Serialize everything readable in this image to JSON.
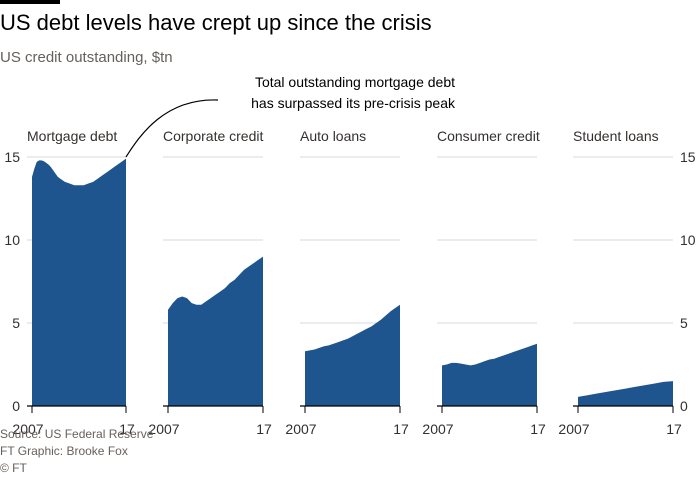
{
  "header": {
    "title": "US debt levels have crept up since the crisis",
    "subtitle": "US credit outstanding, $tn"
  },
  "annotation": {
    "line1": "Total outstanding mortgage debt",
    "line2": "has surpassed its pre-crisis peak"
  },
  "footer": {
    "source": "Source: US Federal Reserve",
    "graphic": "FT Graphic: Brooke Fox",
    "copyright": "© FT"
  },
  "colors": {
    "area": "#1f558e",
    "grid": "#d9d9d9",
    "axis": "#000000",
    "text": "#33302e"
  },
  "chart_data": {
    "type": "area",
    "x_tick_labels": [
      "2007",
      "17"
    ],
    "y_ticks": [
      0,
      5,
      10,
      15
    ],
    "ylim": [
      0,
      15.5
    ],
    "y_axis_sides": "left and right",
    "series": [
      {
        "name": "Mortgage debt",
        "x": [
          2007,
          2007.25,
          2007.5,
          2007.75,
          2008,
          2008.25,
          2008.5,
          2008.75,
          2009,
          2009.25,
          2009.5,
          2009.75,
          2010,
          2010.5,
          2011,
          2011.5,
          2012,
          2012.5,
          2013,
          2013.5,
          2014,
          2014.5,
          2015,
          2015.5,
          2016,
          2016.5,
          2017
        ],
        "values": [
          13.8,
          14.3,
          14.7,
          14.8,
          14.8,
          14.75,
          14.65,
          14.55,
          14.4,
          14.2,
          14.0,
          13.8,
          13.7,
          13.5,
          13.4,
          13.3,
          13.3,
          13.3,
          13.4,
          13.5,
          13.7,
          13.9,
          14.1,
          14.3,
          14.5,
          14.7,
          14.9
        ]
      },
      {
        "name": "Corporate credit",
        "x": [
          2007,
          2007.5,
          2008,
          2008.5,
          2009,
          2009.5,
          2010,
          2010.5,
          2011,
          2011.5,
          2012,
          2012.5,
          2013,
          2013.5,
          2014,
          2014.5,
          2015,
          2015.5,
          2016,
          2016.5,
          2017
        ],
        "values": [
          5.8,
          6.2,
          6.5,
          6.6,
          6.5,
          6.2,
          6.1,
          6.1,
          6.3,
          6.5,
          6.7,
          6.9,
          7.1,
          7.4,
          7.6,
          7.9,
          8.2,
          8.4,
          8.6,
          8.8,
          9.0
        ]
      },
      {
        "name": "Auto loans",
        "x": [
          2007,
          2007.5,
          2008,
          2008.5,
          2009,
          2009.5,
          2010,
          2010.5,
          2011,
          2011.5,
          2012,
          2012.5,
          2013,
          2013.5,
          2014,
          2014.5,
          2015,
          2015.5,
          2016,
          2016.5,
          2017
        ],
        "values": [
          3.3,
          3.35,
          3.4,
          3.5,
          3.6,
          3.65,
          3.75,
          3.85,
          3.95,
          4.05,
          4.2,
          4.35,
          4.5,
          4.65,
          4.8,
          5.0,
          5.2,
          5.45,
          5.7,
          5.9,
          6.1
        ]
      },
      {
        "name": "Consumer credit",
        "x": [
          2007,
          2007.5,
          2008,
          2008.5,
          2009,
          2009.5,
          2010,
          2010.5,
          2011,
          2011.5,
          2012,
          2012.5,
          2013,
          2013.5,
          2014,
          2014.5,
          2015,
          2015.5,
          2016,
          2016.5,
          2017
        ],
        "values": [
          2.45,
          2.5,
          2.6,
          2.6,
          2.55,
          2.5,
          2.45,
          2.5,
          2.6,
          2.7,
          2.8,
          2.85,
          2.95,
          3.05,
          3.15,
          3.25,
          3.35,
          3.45,
          3.55,
          3.65,
          3.75
        ]
      },
      {
        "name": "Student loans",
        "x": [
          2007,
          2008,
          2009,
          2010,
          2011,
          2012,
          2013,
          2014,
          2015,
          2016,
          2017
        ],
        "values": [
          0.55,
          0.65,
          0.75,
          0.85,
          0.95,
          1.05,
          1.15,
          1.25,
          1.35,
          1.45,
          1.5
        ]
      }
    ]
  }
}
